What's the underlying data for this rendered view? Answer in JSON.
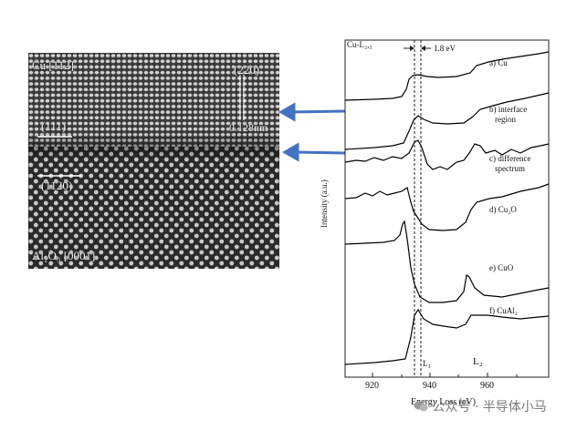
{
  "hrtem": {
    "label_cu_orientation": "Cu [112]",
    "label_cu_220": "(220)",
    "label_cu_111": "(111)",
    "label_spacing": "0.128nm",
    "label_al2o3_1120": "(1120)",
    "label_al2o3_orientation": "Al₂O₃ [0001]"
  },
  "eels": {
    "edge_label": "Cu-L₂,₃",
    "shift_label": "1.8 eV",
    "ylabel": "Intensity (a.u.)",
    "xlabel": "Energy Loss (eV)",
    "x_ticks": [
      "920",
      "940",
      "960"
    ],
    "edge_markers": [
      "L₃",
      "L₂"
    ],
    "spectra": [
      {
        "label": "a) Cu"
      },
      {
        "label": "b) interface",
        "label2": "region"
      },
      {
        "label": "c) difference",
        "label2": "spectrum"
      },
      {
        "label": "d) Cu₂O"
      },
      {
        "label": "e) CuO"
      },
      {
        "label": "f) CuAl₂"
      }
    ]
  },
  "arrows": {
    "color": "#4472c4"
  },
  "watermark": {
    "text": "公众号 · 半导体小马"
  }
}
